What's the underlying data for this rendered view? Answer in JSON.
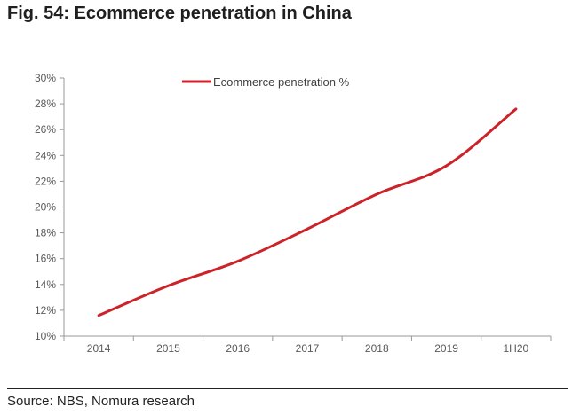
{
  "figure": {
    "title": "Fig. 54: Ecommerce penetration in China",
    "source": "Source: NBS, Nomura research"
  },
  "chart_data": {
    "type": "line",
    "title": "",
    "xlabel": "",
    "ylabel": "",
    "categories": [
      "2014",
      "2015",
      "2016",
      "2017",
      "2018",
      "2019",
      "1H20"
    ],
    "series": [
      {
        "name": "Ecommerce penetration %",
        "color": "#cc2229",
        "values": [
          11.6,
          13.9,
          15.8,
          18.3,
          21.0,
          23.2,
          27.6
        ]
      }
    ],
    "ylim": [
      10,
      30
    ],
    "yticks": [
      10,
      12,
      14,
      16,
      18,
      20,
      22,
      24,
      26,
      28,
      30
    ],
    "ytick_labels": [
      "10%",
      "12%",
      "14%",
      "16%",
      "18%",
      "20%",
      "22%",
      "24%",
      "26%",
      "28%",
      "30%"
    ],
    "grid": false,
    "legend_position": "top-center"
  }
}
